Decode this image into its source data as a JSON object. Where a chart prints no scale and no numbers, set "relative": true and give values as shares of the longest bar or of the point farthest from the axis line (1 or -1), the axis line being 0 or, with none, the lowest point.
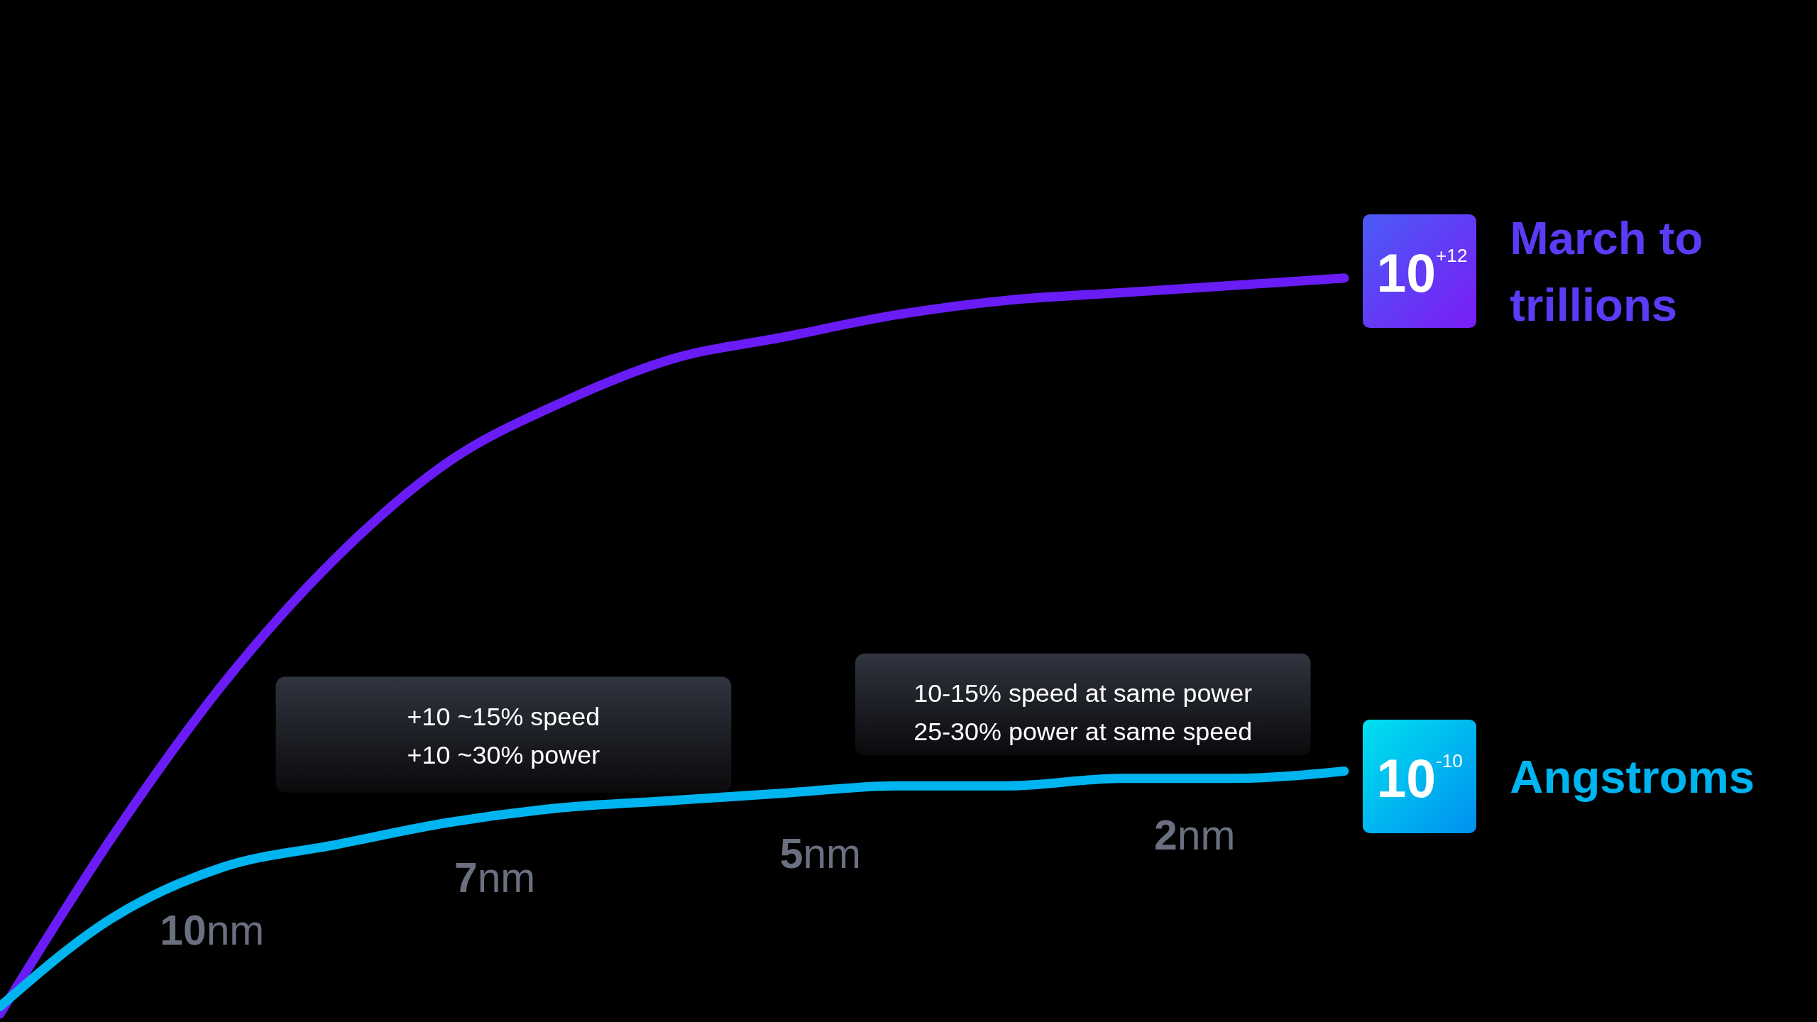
{
  "chart_data": {
    "type": "line",
    "relative": true,
    "legend": false,
    "categories": [
      null,
      null,
      null,
      null,
      null,
      null,
      null,
      null,
      null,
      null,
      null,
      null,
      null
    ],
    "series": [
      {
        "name": "March to trillions",
        "color": "#6a1cf6",
        "values": [
          0,
          0.24,
          0.45,
          0.62,
          0.75,
          0.83,
          0.89,
          0.92,
          0.95,
          0.97,
          0.98,
          0.99,
          1
        ]
      },
      {
        "name": "Angstroms",
        "color": "#00b4f0",
        "values": [
          0.01,
          0.13,
          0.2,
          0.23,
          0.26,
          0.28,
          0.29,
          0.3,
          0.31,
          0.31,
          0.32,
          0.32,
          0.33
        ]
      }
    ],
    "annotations": [
      "10nm",
      "7nm",
      "5nm",
      "2nm",
      "+10 ~15% speed\n+10 ~30% power",
      "10-15% speed at same power\n25-30% power at same speed",
      "10$^{+12}$",
      "10$^{-10}$"
    ]
  }
}
